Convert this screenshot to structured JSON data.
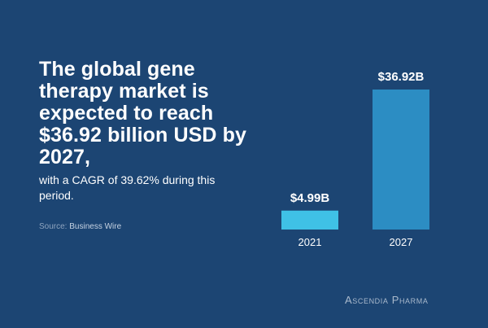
{
  "headline": "The global gene therapy market is expected to reach $36.92 billion USD by 2027,",
  "subline": "with a CAGR of 39.62% during this period.",
  "source": {
    "label": "Source:",
    "value": "Business Wire"
  },
  "logo_text": "Ascendia Pharma",
  "colors": {
    "background": "#1c4573",
    "bar_2021": "#3fc1e6",
    "bar_2027": "#2c8dc3",
    "text": "#ffffff"
  },
  "chart_data": {
    "type": "bar",
    "categories": [
      "2021",
      "2027"
    ],
    "values": [
      4.99,
      36.92
    ],
    "data_labels": [
      "$4.99B",
      "$36.92B"
    ],
    "title": "",
    "xlabel": "",
    "ylabel": "",
    "ylim": [
      0,
      36.92
    ],
    "grid": false
  }
}
